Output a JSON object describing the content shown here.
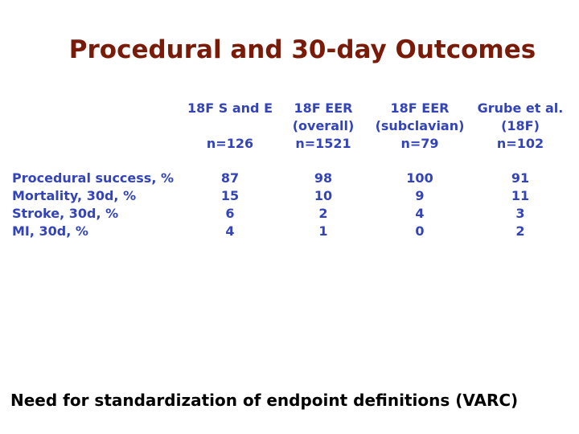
{
  "title": "Procedural and 30-day Outcomes",
  "columns": [
    {
      "line1": "18F S and E",
      "line2": "",
      "n": "n=126"
    },
    {
      "line1": "18F EER",
      "line2": "(overall)",
      "n": "n=1521"
    },
    {
      "line1": "18F EER",
      "line2": "(subclavian)",
      "n": "n=79"
    },
    {
      "line1": "Grube et al.",
      "line2": "(18F)",
      "n": "n=102"
    }
  ],
  "rows": [
    {
      "label": "Procedural success, %",
      "values": [
        "87",
        "98",
        "100",
        "91"
      ]
    },
    {
      "label": "Mortality, 30d, %",
      "values": [
        "15",
        "10",
        "9",
        "11"
      ]
    },
    {
      "label": "Stroke, 30d, %",
      "values": [
        "6",
        "2",
        "4",
        "3"
      ]
    },
    {
      "label": "MI, 30d, %",
      "values": [
        "4",
        "1",
        "0",
        "2"
      ]
    }
  ],
  "footer": "Need for standardization of endpoint definitions (VARC)"
}
